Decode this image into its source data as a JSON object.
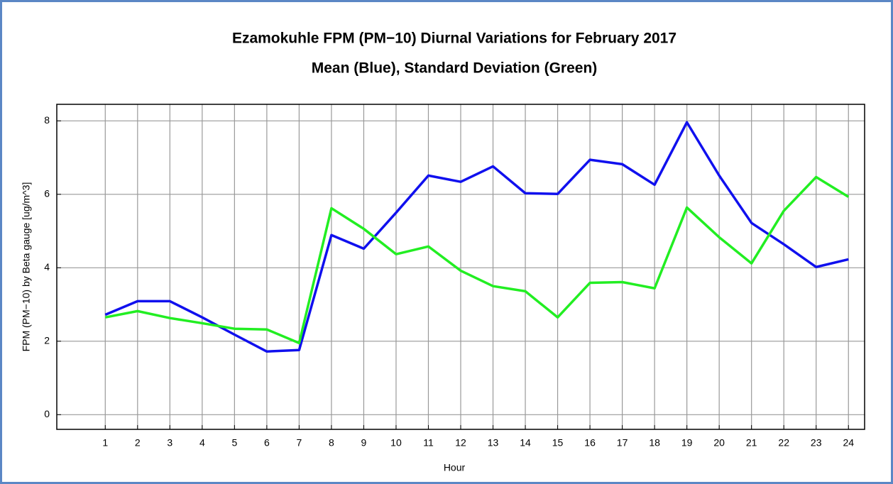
{
  "chart_data": {
    "type": "line",
    "title": "Ezamokuhle FPM (PM−10) Diurnal Variations for February 2017",
    "subtitle": "Mean (Blue), Standard Deviation (Green)",
    "x_label": "Hour",
    "y_label": "FPM (PM−10) by Beta gauge  [ug/m^3]",
    "x": [
      1,
      2,
      3,
      4,
      5,
      6,
      7,
      8,
      9,
      10,
      11,
      12,
      13,
      14,
      15,
      16,
      17,
      18,
      19,
      20,
      21,
      22,
      23,
      24
    ],
    "series": [
      {
        "color": "#1010ee",
        "values": [
          2.72,
          3.09,
          3.09,
          2.65,
          2.18,
          1.72,
          1.76,
          4.89,
          4.52,
          5.5,
          6.51,
          6.34,
          6.76,
          6.03,
          6.01,
          6.94,
          6.82,
          6.26,
          7.96,
          6.51,
          5.22,
          4.64,
          4.02,
          4.23
        ]
      },
      {
        "color": "#22ee22",
        "values": [
          2.65,
          2.82,
          2.63,
          2.49,
          2.34,
          2.32,
          1.95,
          5.62,
          5.06,
          4.37,
          4.58,
          3.92,
          3.5,
          3.36,
          2.65,
          3.59,
          3.61,
          3.44,
          5.64,
          4.83,
          4.12,
          5.55,
          6.47,
          5.93
        ]
      }
    ],
    "xlim": [
      -0.5,
      24.5
    ],
    "xticks": [
      1,
      2,
      3,
      4,
      5,
      6,
      7,
      8,
      9,
      10,
      11,
      12,
      13,
      14,
      15,
      16,
      17,
      18,
      19,
      20,
      21,
      22,
      23,
      24
    ],
    "ylim": [
      -0.4,
      8.45
    ],
    "yticks": [
      0,
      2,
      4,
      6,
      8
    ],
    "grid": true
  }
}
